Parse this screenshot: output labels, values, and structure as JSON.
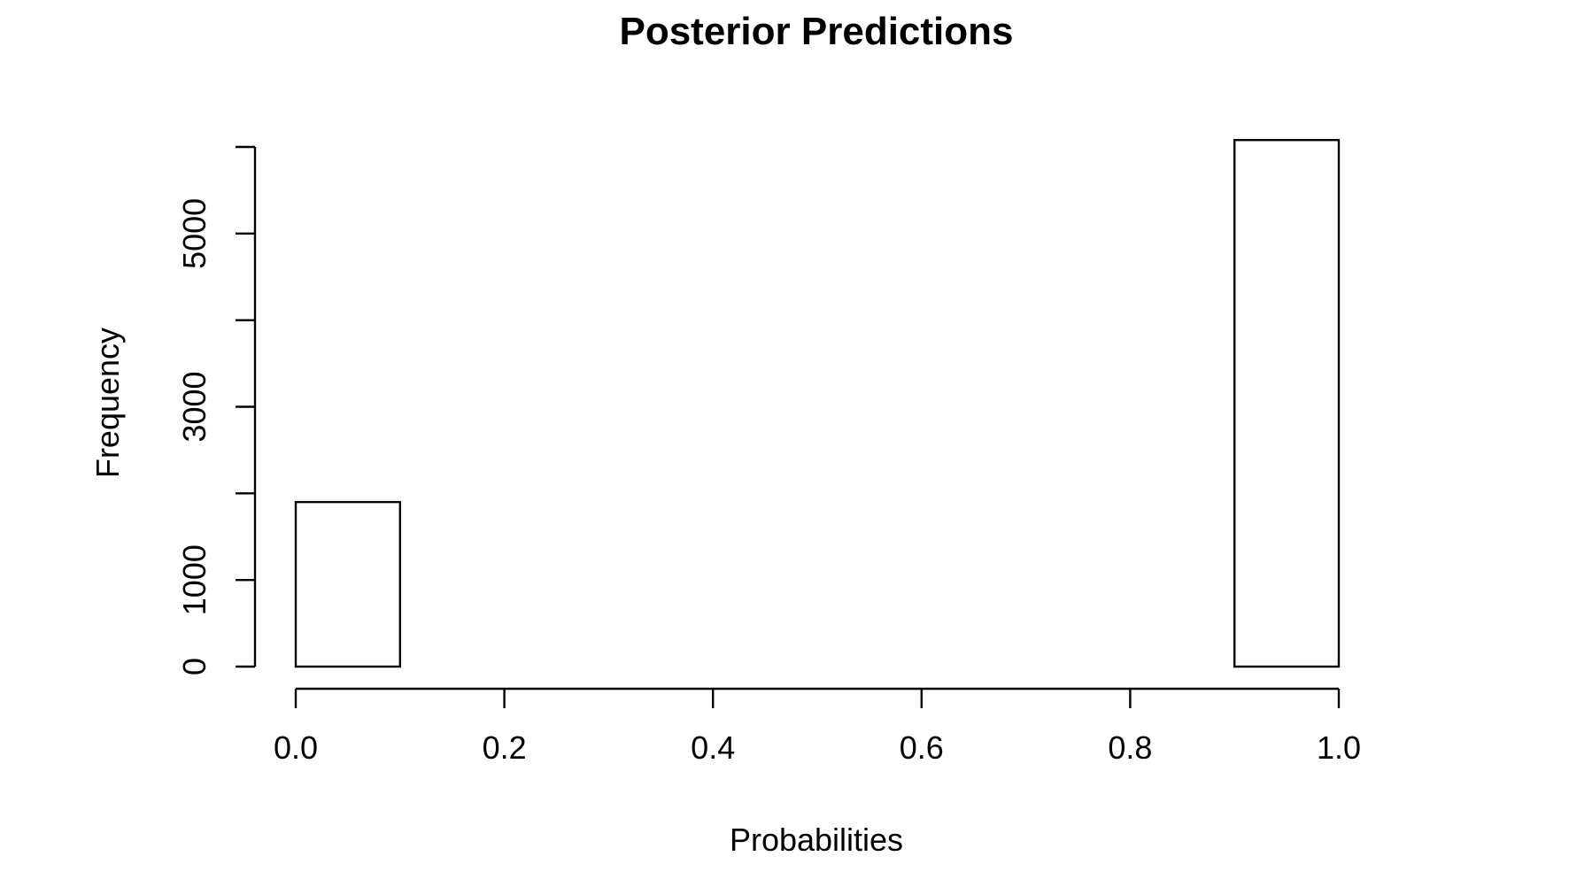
{
  "chart_data": {
    "type": "bar",
    "title": "Posterior Predictions",
    "xlabel": "Probabilities",
    "ylabel": "Frequency",
    "bins": [
      {
        "x0": 0.0,
        "x1": 0.1,
        "count": 1900
      },
      {
        "x0": 0.1,
        "x1": 0.2,
        "count": 0
      },
      {
        "x0": 0.2,
        "x1": 0.3,
        "count": 0
      },
      {
        "x0": 0.3,
        "x1": 0.4,
        "count": 0
      },
      {
        "x0": 0.4,
        "x1": 0.5,
        "count": 0
      },
      {
        "x0": 0.5,
        "x1": 0.6,
        "count": 0
      },
      {
        "x0": 0.6,
        "x1": 0.7,
        "count": 0
      },
      {
        "x0": 0.7,
        "x1": 0.8,
        "count": 0
      },
      {
        "x0": 0.8,
        "x1": 0.9,
        "count": 0
      },
      {
        "x0": 0.9,
        "x1": 1.0,
        "count": 6080
      }
    ],
    "xlim": [
      0.0,
      1.0
    ],
    "ylim": [
      0,
      6000
    ],
    "x_ticks": [
      0.0,
      0.2,
      0.4,
      0.6,
      0.8,
      1.0
    ],
    "x_tick_labels": [
      "0.0",
      "0.2",
      "0.4",
      "0.6",
      "0.8",
      "1.0"
    ],
    "y_ticks": [
      0,
      1000,
      2000,
      3000,
      4000,
      5000,
      6000
    ],
    "y_tick_labels": [
      "0",
      "1000",
      "",
      "3000",
      "",
      "5000",
      ""
    ],
    "grid": false,
    "legend": "none",
    "bar_fill": "#ffffff",
    "bar_stroke": "#000000"
  }
}
